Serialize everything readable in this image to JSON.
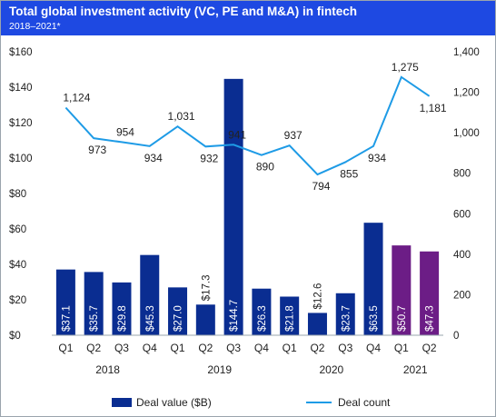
{
  "header": {
    "title": "Total global investment activity (VC, PE and M&A) in fintech",
    "subtitle": "2018–2021*"
  },
  "colors": {
    "header_bg": "#1e49e2",
    "bar_primary": "#0a2d91",
    "bar_highlight": "#6c1d86",
    "line": "#1e9be6"
  },
  "chart_data": {
    "type": "bar",
    "title": "Total global investment activity (VC, PE and M&A) in fintech",
    "subtitle": "2018–2021*",
    "categories": [
      "Q1",
      "Q2",
      "Q3",
      "Q4",
      "Q1",
      "Q2",
      "Q3",
      "Q4",
      "Q1",
      "Q2",
      "Q3",
      "Q4",
      "Q1",
      "Q2"
    ],
    "years": [
      {
        "label": "2018",
        "from": 0,
        "to": 3
      },
      {
        "label": "2019",
        "from": 4,
        "to": 7
      },
      {
        "label": "2020",
        "from": 8,
        "to": 11
      },
      {
        "label": "2021",
        "from": 12,
        "to": 13
      }
    ],
    "series": [
      {
        "name": "Deal value ($B)",
        "type": "bar",
        "axis": "left",
        "values": [
          37.1,
          35.7,
          29.8,
          45.3,
          27.0,
          17.3,
          144.7,
          26.3,
          21.8,
          12.6,
          23.7,
          63.5,
          50.7,
          47.3
        ],
        "labels": [
          "$37.1",
          "$35.7",
          "$29.8",
          "$45.3",
          "$27.0",
          "$17.3",
          "$144.7",
          "$26.3",
          "$21.8",
          "$12.6",
          "$23.7",
          "$63.5",
          "$50.7",
          "$47.3"
        ],
        "highlight_indices": [
          12,
          13
        ]
      },
      {
        "name": "Deal count",
        "type": "line",
        "axis": "right",
        "values": [
          1124,
          973,
          954,
          934,
          1031,
          932,
          941,
          890,
          937,
          794,
          855,
          934,
          1275,
          1181
        ],
        "labels": [
          "1,124",
          "973",
          "954",
          "934",
          "1,031",
          "932",
          "941",
          "890",
          "937",
          "794",
          "855",
          "934",
          "1,275",
          "1,181"
        ]
      }
    ],
    "y_left": {
      "min": 0,
      "max": 160,
      "ticks": [
        0,
        20,
        40,
        60,
        80,
        100,
        120,
        140,
        160
      ],
      "tick_labels": [
        "$0",
        "$20",
        "$40",
        "$60",
        "$80",
        "$100",
        "$120",
        "$140",
        "$160"
      ]
    },
    "y_right": {
      "min": 0,
      "max": 1400,
      "ticks": [
        0,
        200,
        400,
        600,
        800,
        1000,
        1200,
        1400
      ],
      "tick_labels": [
        "0",
        "200",
        "400",
        "600",
        "800",
        "1,000",
        "1,200",
        "1,400"
      ]
    },
    "grid": false,
    "legend_position": "bottom"
  }
}
